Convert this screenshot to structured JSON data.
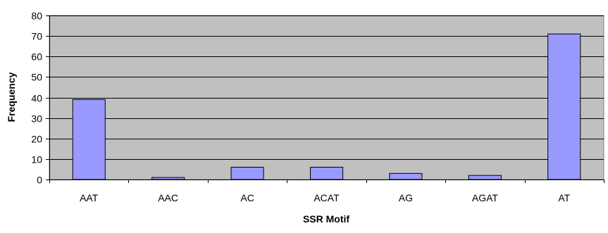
{
  "chart_data": {
    "type": "bar",
    "title": "",
    "xlabel": "SSR Motif",
    "ylabel": "Frequency",
    "categories": [
      "AAT",
      "AAC",
      "AC",
      "ACAT",
      "AG",
      "AGAT",
      "AT"
    ],
    "values": [
      39,
      1,
      6,
      6,
      3,
      2,
      71
    ],
    "ylim": [
      0,
      80
    ],
    "yticks": [
      0,
      10,
      20,
      30,
      40,
      50,
      60,
      70,
      80
    ],
    "grid": true,
    "legend": "none",
    "colors": {
      "bar_fill": "#9999ff",
      "bar_stroke": "#000000",
      "plot_background": "#c0c0c0",
      "grid": "#000000"
    }
  }
}
